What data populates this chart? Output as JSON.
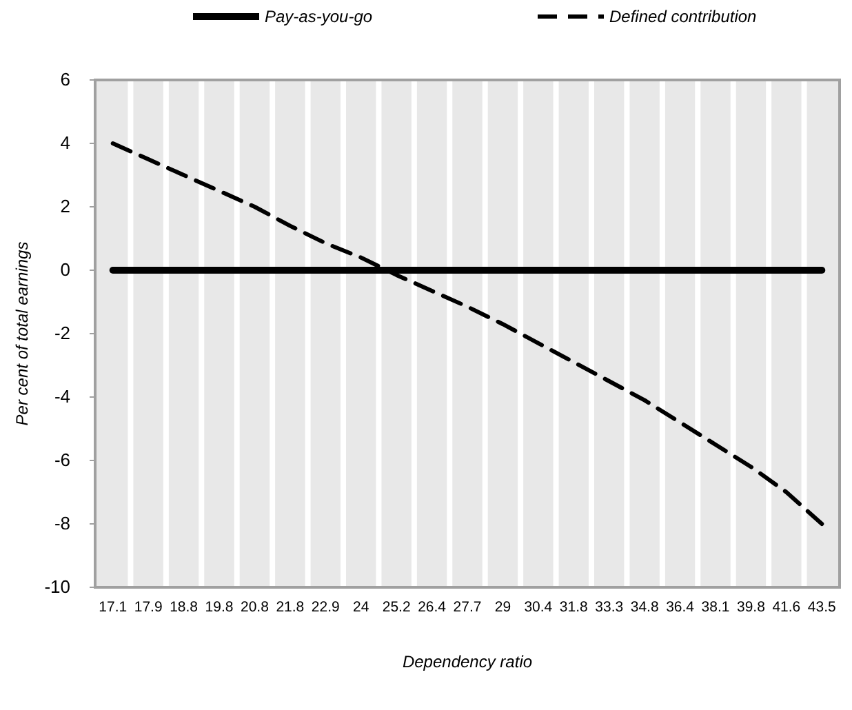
{
  "chart_data": {
    "type": "line",
    "xlabel": "Dependency ratio",
    "ylabel": "Per cent of total earnings",
    "categories": [
      "17.1",
      "17.9",
      "18.8",
      "19.8",
      "20.8",
      "21.8",
      "22.9",
      "24",
      "25.2",
      "26.4",
      "27.7",
      "29",
      "30.4",
      "31.8",
      "33.3",
      "34.8",
      "36.4",
      "38.1",
      "39.8",
      "41.6",
      "43.5"
    ],
    "series": [
      {
        "name": "Pay-as-you-go",
        "color": "#000000",
        "line_style": "solid",
        "values": [
          0,
          0,
          0,
          0,
          0,
          0,
          0,
          0,
          0,
          0,
          0,
          0,
          0,
          0,
          0,
          0,
          0,
          0,
          0,
          0,
          0
        ]
      },
      {
        "name": "Defined contribution",
        "color": "#000000",
        "line_style": "dashed",
        "values": [
          4,
          3.5,
          3.0,
          2.5,
          2.0,
          1.4,
          0.85,
          0.4,
          -0.15,
          -0.65,
          -1.15,
          -1.7,
          -2.3,
          -2.9,
          -3.5,
          -4.1,
          -4.8,
          -5.5,
          -6.2,
          -7.0,
          -8.0
        ]
      }
    ],
    "ylim": [
      -10,
      6
    ],
    "yticks": [
      -10,
      -8,
      -6,
      -4,
      -2,
      0,
      2,
      4,
      6
    ],
    "grid": "x",
    "legend": "top",
    "marker": "none"
  }
}
